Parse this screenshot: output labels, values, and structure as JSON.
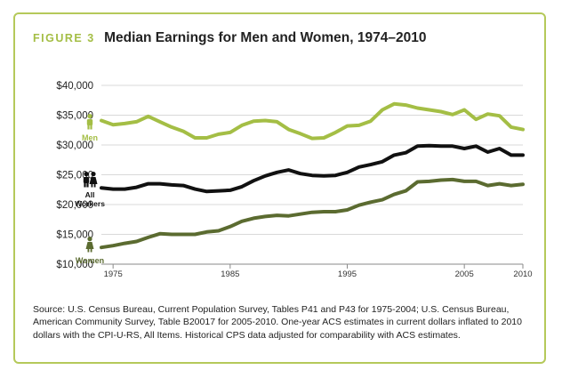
{
  "figure_label": "FIGURE 3",
  "title": "Median Earnings for Men and Women, 1974–2010",
  "source_note": "Source: U.S. Census Bureau, Current Population Survey, Tables P41 and P43 for 1975-2004; U.S. Census Bureau, American Community Survey, Table B20017 for 2005-2010. One-year ACS estimates in current dollars inflated to 2010 dollars with the CPI-U-RS, All Items. Historical CPS data adjusted for comparability with ACS estimates.",
  "colors": {
    "men": "#a4be45",
    "all_workers": "#111111",
    "women": "#5b6b30",
    "frame": "#b5c95a",
    "grid": "#d9d9d9",
    "axis": "#8a8a8a"
  },
  "chart_data": {
    "type": "line",
    "x": [
      1974,
      1975,
      1976,
      1977,
      1978,
      1979,
      1980,
      1981,
      1982,
      1983,
      1984,
      1985,
      1986,
      1987,
      1988,
      1989,
      1990,
      1991,
      1992,
      1993,
      1994,
      1995,
      1996,
      1997,
      1998,
      1999,
      2000,
      2001,
      2002,
      2003,
      2004,
      2005,
      2006,
      2007,
      2008,
      2009,
      2010
    ],
    "xticks": [
      1975,
      1985,
      1995,
      2005,
      2010
    ],
    "xlim": [
      1974,
      2010
    ],
    "ylim": [
      10000,
      40000
    ],
    "yticks": [
      {
        "value": 10000,
        "label": "$10,000"
      },
      {
        "value": 15000,
        "label": "$15,000"
      },
      {
        "value": 20000,
        "label": "$20,000"
      },
      {
        "value": 25000,
        "label": "$25,000"
      },
      {
        "value": 30000,
        "label": "$30,000"
      },
      {
        "value": 35000,
        "label": "$35,000"
      },
      {
        "value": 40000,
        "label": "$40,000"
      }
    ],
    "grid": true,
    "series": [
      {
        "name": "Men",
        "icon": "man-icon",
        "color": "#a4be45",
        "values": [
          34100,
          33400,
          33600,
          33900,
          34800,
          33900,
          33000,
          32300,
          31200,
          31200,
          31800,
          32100,
          33300,
          34000,
          34100,
          33900,
          32600,
          31900,
          31100,
          31200,
          32100,
          33200,
          33300,
          34000,
          35900,
          36900,
          36700,
          36200,
          35900,
          35600,
          35100,
          35900,
          34300,
          35200,
          34900,
          33000,
          32600
        ]
      },
      {
        "name": "All Workers",
        "icon": "people-icon",
        "color": "#111111",
        "values": [
          22800,
          22600,
          22600,
          22900,
          23500,
          23500,
          23300,
          23200,
          22600,
          22200,
          22300,
          22400,
          23000,
          24000,
          24800,
          25400,
          25800,
          25200,
          24900,
          24800,
          24900,
          25400,
          26300,
          26700,
          27200,
          28300,
          28700,
          29800,
          29900,
          29800,
          29800,
          29400,
          29800,
          28800,
          29400,
          28300,
          28300
        ]
      },
      {
        "name": "Women",
        "icon": "woman-icon",
        "color": "#5b6b30",
        "values": [
          12800,
          13100,
          13500,
          13800,
          14500,
          15100,
          15000,
          15000,
          15000,
          15400,
          15600,
          16300,
          17200,
          17700,
          18000,
          18200,
          18100,
          18400,
          18700,
          18800,
          18800,
          19100,
          19900,
          20400,
          20800,
          21700,
          22300,
          23800,
          23900,
          24100,
          24200,
          23900,
          23900,
          23200,
          23500,
          23200,
          23400
        ]
      }
    ]
  }
}
